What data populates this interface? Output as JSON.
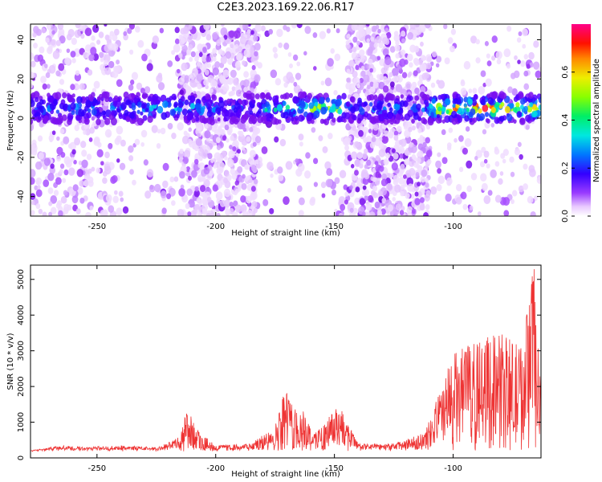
{
  "figure": {
    "title": "C2E3.2023.169.22.06.R17"
  },
  "chart_data": [
    {
      "type": "heatmap",
      "xlabel": "Height of straight line (km)",
      "ylabel": "Frequency (Hz)",
      "xlim": [
        -278,
        -63
      ],
      "ylim": [
        -50,
        48
      ],
      "xticks": [
        -250,
        -200,
        -150,
        -100
      ],
      "yticks": [
        -40,
        -20,
        0,
        20,
        40
      ],
      "colorbar": {
        "label": "Normalized spectral amplitude",
        "range": [
          0,
          0.8
        ],
        "ticks": [
          0.0,
          0.2,
          0.4,
          0.6
        ],
        "colormap": "rainbow (white-purple-blue-cyan-green-yellow-red-magenta)"
      },
      "features": [
        {
          "name": "main band",
          "x_range": [
            -278,
            -63
          ],
          "frequency_hz": 5,
          "note": "bright stripe near 5 Hz, strongest at -150 and -105 to -65 km"
        },
        {
          "name": "broadband burst",
          "x_range": [
            -215,
            -182
          ],
          "frequency_range_hz": [
            -50,
            48
          ]
        },
        {
          "name": "broadband burst",
          "x_range": [
            -145,
            -110
          ],
          "frequency_range_hz": [
            -50,
            48
          ]
        }
      ]
    },
    {
      "type": "line",
      "xlabel": "Height of straight line (km)",
      "ylabel": "SNR (10 * v/v)",
      "xlim": [
        -278,
        -63
      ],
      "ylim": [
        0,
        5400
      ],
      "xticks": [
        -250,
        -200,
        -150,
        -100
      ],
      "yticks": [
        0,
        1000,
        2000,
        3000,
        4000,
        5000
      ],
      "color": "#ee3333",
      "series_envelope": [
        {
          "x": -278,
          "y": 200
        },
        {
          "x": -265,
          "y": 350
        },
        {
          "x": -255,
          "y": 300
        },
        {
          "x": -240,
          "y": 350
        },
        {
          "x": -225,
          "y": 300
        },
        {
          "x": -215,
          "y": 600
        },
        {
          "x": -212,
          "y": 1450
        },
        {
          "x": -208,
          "y": 800
        },
        {
          "x": -200,
          "y": 350
        },
        {
          "x": -185,
          "y": 400
        },
        {
          "x": -175,
          "y": 900
        },
        {
          "x": -171,
          "y": 2050
        },
        {
          "x": -168,
          "y": 1500
        },
        {
          "x": -163,
          "y": 1350
        },
        {
          "x": -158,
          "y": 700
        },
        {
          "x": -151,
          "y": 1250
        },
        {
          "x": -148,
          "y": 1550
        },
        {
          "x": -140,
          "y": 400
        },
        {
          "x": -125,
          "y": 400
        },
        {
          "x": -112,
          "y": 700
        },
        {
          "x": -100,
          "y": 2950
        },
        {
          "x": -90,
          "y": 3300
        },
        {
          "x": -80,
          "y": 3500
        },
        {
          "x": -72,
          "y": 3200
        },
        {
          "x": -66,
          "y": 5400
        },
        {
          "x": -63,
          "y": 1800
        }
      ]
    }
  ]
}
